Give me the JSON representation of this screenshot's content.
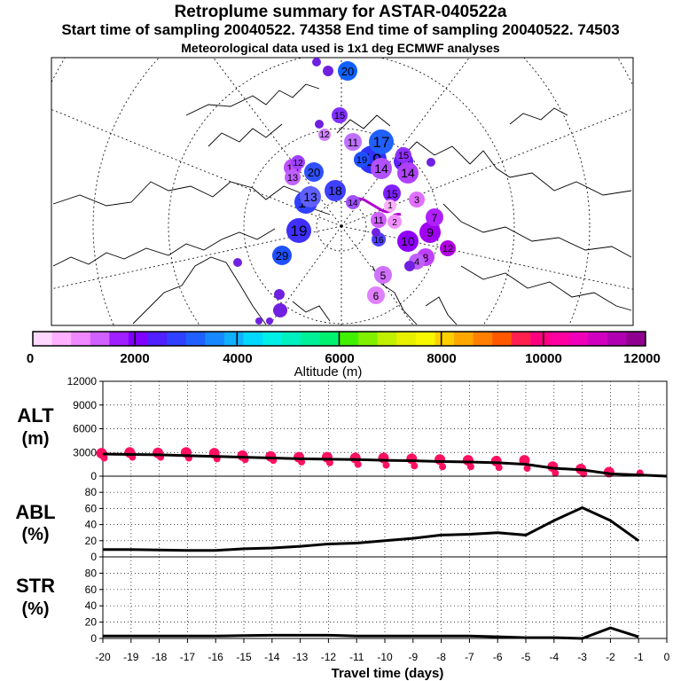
{
  "header": {
    "title": "Retroplume summary for ASTAR-040522a",
    "sampling": "Start time of sampling 20040522. 74358     End time of sampling 20040522. 74503",
    "met": "Meteorological data used is 1x1 deg ECMWF analyses"
  },
  "colorbar": {
    "xlabel": "Altitude (m)",
    "ticks": [
      "0",
      "2000",
      "4000",
      "6000",
      "8000",
      "10000",
      "12000"
    ],
    "colors": [
      "#ffd8ff",
      "#ffb0ff",
      "#f088ff",
      "#d060ff",
      "#a020ff",
      "#8000ff",
      "#5020ff",
      "#3040ff",
      "#2060ff",
      "#1888ff",
      "#10b0ff",
      "#00d8ff",
      "#00f0e8",
      "#00f0c0",
      "#00f098",
      "#00f070",
      "#40f000",
      "#80f000",
      "#c0f000",
      "#e8f000",
      "#f8f800",
      "#ffd000",
      "#ffa800",
      "#ff8000",
      "#ff5800",
      "#ff2050",
      "#ff0080",
      "#ff00a0",
      "#f000b8",
      "#d000c0",
      "#b000b0",
      "#900090"
    ]
  },
  "map_labels": [
    {
      "text": "20",
      "c": "#1060ff"
    },
    {
      "text": "19",
      "c": "#3030ff"
    },
    {
      "text": "18",
      "c": "#4040ff"
    },
    {
      "text": "17",
      "c": "#2060ff"
    },
    {
      "text": "16",
      "c": "#6020ff"
    },
    {
      "text": "15",
      "c": "#8020ff"
    },
    {
      "text": "14",
      "c": "#b040ff"
    },
    {
      "text": "13",
      "c": "#c050ff"
    },
    {
      "text": "12",
      "c": "#b000e0"
    },
    {
      "text": "11",
      "c": "#d060ff"
    },
    {
      "text": "10",
      "c": "#9000ff"
    },
    {
      "text": "9",
      "c": "#a000f0"
    },
    {
      "text": "8",
      "c": "#c040ff"
    },
    {
      "text": "7",
      "c": "#b020ff"
    },
    {
      "text": "6",
      "c": "#e080ff"
    },
    {
      "text": "5",
      "c": "#d070ff"
    },
    {
      "text": "4",
      "c": "#c060ff"
    },
    {
      "text": "3",
      "c": "#e070ff"
    },
    {
      "text": "2",
      "c": "#f090ff"
    },
    {
      "text": "1",
      "c": "#ffb0ff"
    },
    {
      "text": "20",
      "c": "#3050ff"
    },
    {
      "text": "19",
      "c": "#2050ff"
    },
    {
      "text": "17",
      "c": "#3040ff"
    },
    {
      "text": "13",
      "c": "#c060ff"
    },
    {
      "text": "14",
      "c": "#b050ff"
    },
    {
      "text": "29",
      "c": "#2050ff"
    },
    {
      "text": "12",
      "c": "#a040ff"
    },
    {
      "text": "19",
      "c": "#4030ff"
    },
    {
      "text": "15",
      "c": "#8030ff"
    },
    {
      "text": "11",
      "c": "#c070ff"
    },
    {
      "text": "12",
      "c": "#d080ff"
    },
    {
      "text": "15",
      "c": "#9030ff"
    },
    {
      "text": "13",
      "c": "#6060ff"
    },
    {
      "text": "14",
      "c": "#a050ff"
    },
    {
      "text": "16",
      "c": "#5040ff"
    }
  ],
  "chart_data": [
    {
      "type": "scatter",
      "title": "ALT (m)",
      "xlabel": "Travel time (days)",
      "ylabel": "ALT (m)",
      "ylim": [
        0,
        12000
      ],
      "yticks": [
        0,
        3000,
        6000,
        9000,
        12000
      ],
      "xlim": [
        -20,
        0
      ],
      "xticks": [
        -20,
        -19,
        -18,
        -17,
        -16,
        -15,
        -14,
        -13,
        -12,
        -11,
        -10,
        -9,
        -8,
        -7,
        -6,
        -5,
        -4,
        -3,
        -2,
        -1,
        0
      ],
      "xtick_labels": [
        "-20",
        "-19",
        "-18",
        "-17",
        "-16",
        "-15",
        "-14",
        "-13",
        "-12",
        "-11",
        "-10",
        "-9",
        "-8",
        "-7",
        "-6",
        "-5",
        "-4",
        "-3",
        "-2",
        "-1",
        "0"
      ],
      "line": {
        "x": [
          -20,
          -19,
          -18,
          -17,
          -16,
          -15,
          -14,
          -13,
          -12,
          -11,
          -10,
          -9,
          -8,
          -7,
          -6,
          -5,
          -4,
          -3,
          -2,
          -1,
          0
        ],
        "y": [
          2800,
          2750,
          2700,
          2600,
          2500,
          2400,
          2300,
          2200,
          2150,
          2100,
          2000,
          1950,
          1850,
          1800,
          1700,
          1500,
          1000,
          800,
          300,
          150,
          0
        ]
      },
      "points": {
        "x": [
          -20,
          -20,
          -19,
          -19,
          -18,
          -18,
          -17,
          -17,
          -16,
          -16,
          -15,
          -15,
          -14,
          -14,
          -13,
          -13,
          -12,
          -12,
          -11,
          -11,
          -10,
          -10,
          -9,
          -9,
          -8,
          -8,
          -7,
          -7,
          -6,
          -6,
          -5,
          -5,
          -4,
          -4,
          -3,
          -3,
          -2,
          -1
        ],
        "y": [
          2900,
          2300,
          3000,
          2400,
          2950,
          2400,
          3000,
          2300,
          2900,
          2200,
          2600,
          2100,
          2500,
          2000,
          2400,
          1800,
          2400,
          1700,
          2300,
          1500,
          2300,
          1400,
          2200,
          1300,
          2100,
          1200,
          2000,
          1200,
          1900,
          1100,
          2000,
          1000,
          1200,
          400,
          900,
          300,
          500,
          400
        ]
      }
    },
    {
      "type": "line",
      "title": "ABL (%)",
      "ylabel": "ABL (%)",
      "ylim": [
        0,
        100
      ],
      "yticks": [
        0,
        20,
        40,
        60,
        80
      ],
      "xlim": [
        -20,
        0
      ],
      "x": [
        -20,
        -19,
        -18,
        -17,
        -16,
        -15,
        -14,
        -13,
        -12,
        -11,
        -10,
        -9,
        -8,
        -7,
        -6,
        -5,
        -4,
        -3,
        -2,
        -1
      ],
      "y": [
        9,
        9,
        8.5,
        8,
        8,
        10,
        11,
        13,
        16,
        17,
        20,
        23,
        27,
        28,
        30,
        27,
        45,
        61,
        45,
        20
      ]
    },
    {
      "type": "line",
      "title": "STR (%)",
      "ylabel": "STR (%)",
      "ylim": [
        0,
        100
      ],
      "yticks": [
        0,
        20,
        40,
        60,
        80
      ],
      "xlim": [
        -20,
        0
      ],
      "x": [
        -20,
        -19,
        -18,
        -17,
        -16,
        -15,
        -14,
        -13,
        -12,
        -11,
        -10,
        -9,
        -8,
        -7,
        -6,
        -5,
        -4,
        -3,
        -2,
        -1
      ],
      "y": [
        3,
        3,
        3,
        3,
        3,
        3.5,
        4,
        4,
        4,
        3,
        3,
        3,
        3,
        3,
        2,
        1,
        1,
        0,
        13,
        2
      ]
    }
  ],
  "panel_titles": {
    "alt_1": "ALT",
    "alt_2": "(m)",
    "abl_1": "ABL",
    "abl_2": "(%)",
    "str_1": "STR",
    "str_2": "(%)"
  }
}
